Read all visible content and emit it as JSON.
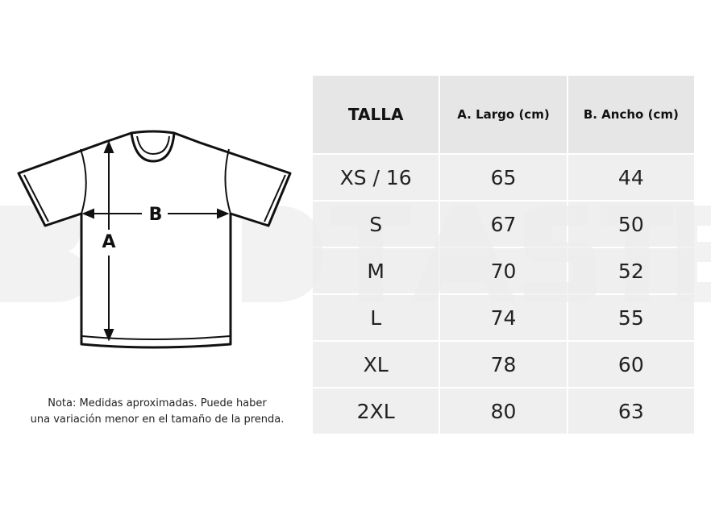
{
  "watermark": "BAD TASTE",
  "diagram": {
    "label_a": "A",
    "label_b": "B"
  },
  "note": {
    "line1": "Nota: Medidas aproximadas. Puede haber",
    "line2": "una variación menor en el tamaño de la prenda."
  },
  "table": {
    "headers": [
      "TALLA",
      "A. Largo (cm)",
      "B. Ancho (cm)"
    ],
    "rows": [
      [
        "XS / 16",
        "65",
        "44"
      ],
      [
        "S",
        "67",
        "50"
      ],
      [
        "M",
        "70",
        "52"
      ],
      [
        "L",
        "74",
        "55"
      ],
      [
        "XL",
        "78",
        "60"
      ],
      [
        "2XL",
        "80",
        "63"
      ]
    ]
  }
}
